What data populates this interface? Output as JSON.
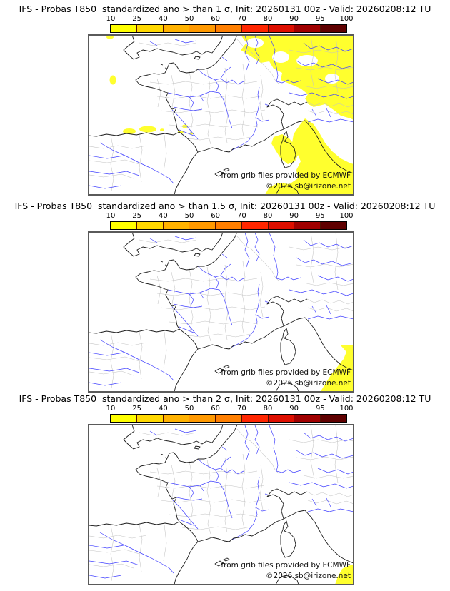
{
  "panels": [
    {
      "title": "IFS - Probas T850  standardized ano > than 1 σ, Init: 20260131 00z - Valid: 20260208:12 TU",
      "credit_line1": "from grib files provided by ECMWF",
      "credit_line2": "©2026 sb@irizone.net"
    },
    {
      "title": "IFS - Probas T850  standardized ano > than 1.5 σ, Init: 20260131 00z - Valid: 20260208:12 TU",
      "credit_line1": "from grib files provided by ECMWF",
      "credit_line2": "©2026 sb@irizone.net"
    },
    {
      "title": "IFS - Probas T850  standardized ano > than 2 σ, Init: 20260131 00z - Valid: 20260208:12 TU",
      "credit_line1": "from grib files provided by ECMWF",
      "credit_line2": "©2026 sb@irizone.net"
    }
  ],
  "colorbar": {
    "ticks": [
      "10",
      "25",
      "40",
      "50",
      "60",
      "70",
      "80",
      "90",
      "95",
      "100"
    ],
    "segment_colors": [
      "#ffff00",
      "#ffd800",
      "#ffb200",
      "#ff9900",
      "#ff7f00",
      "#ff2600",
      "#de0f00",
      "#a00000",
      "#5f0000"
    ]
  },
  "map_colors": {
    "probability_shading": "#ffff2e",
    "coastline": "#1c1c1c",
    "boundary": "#c3c3c3",
    "river": "#4040ff",
    "frame": "#5a5a5a"
  }
}
